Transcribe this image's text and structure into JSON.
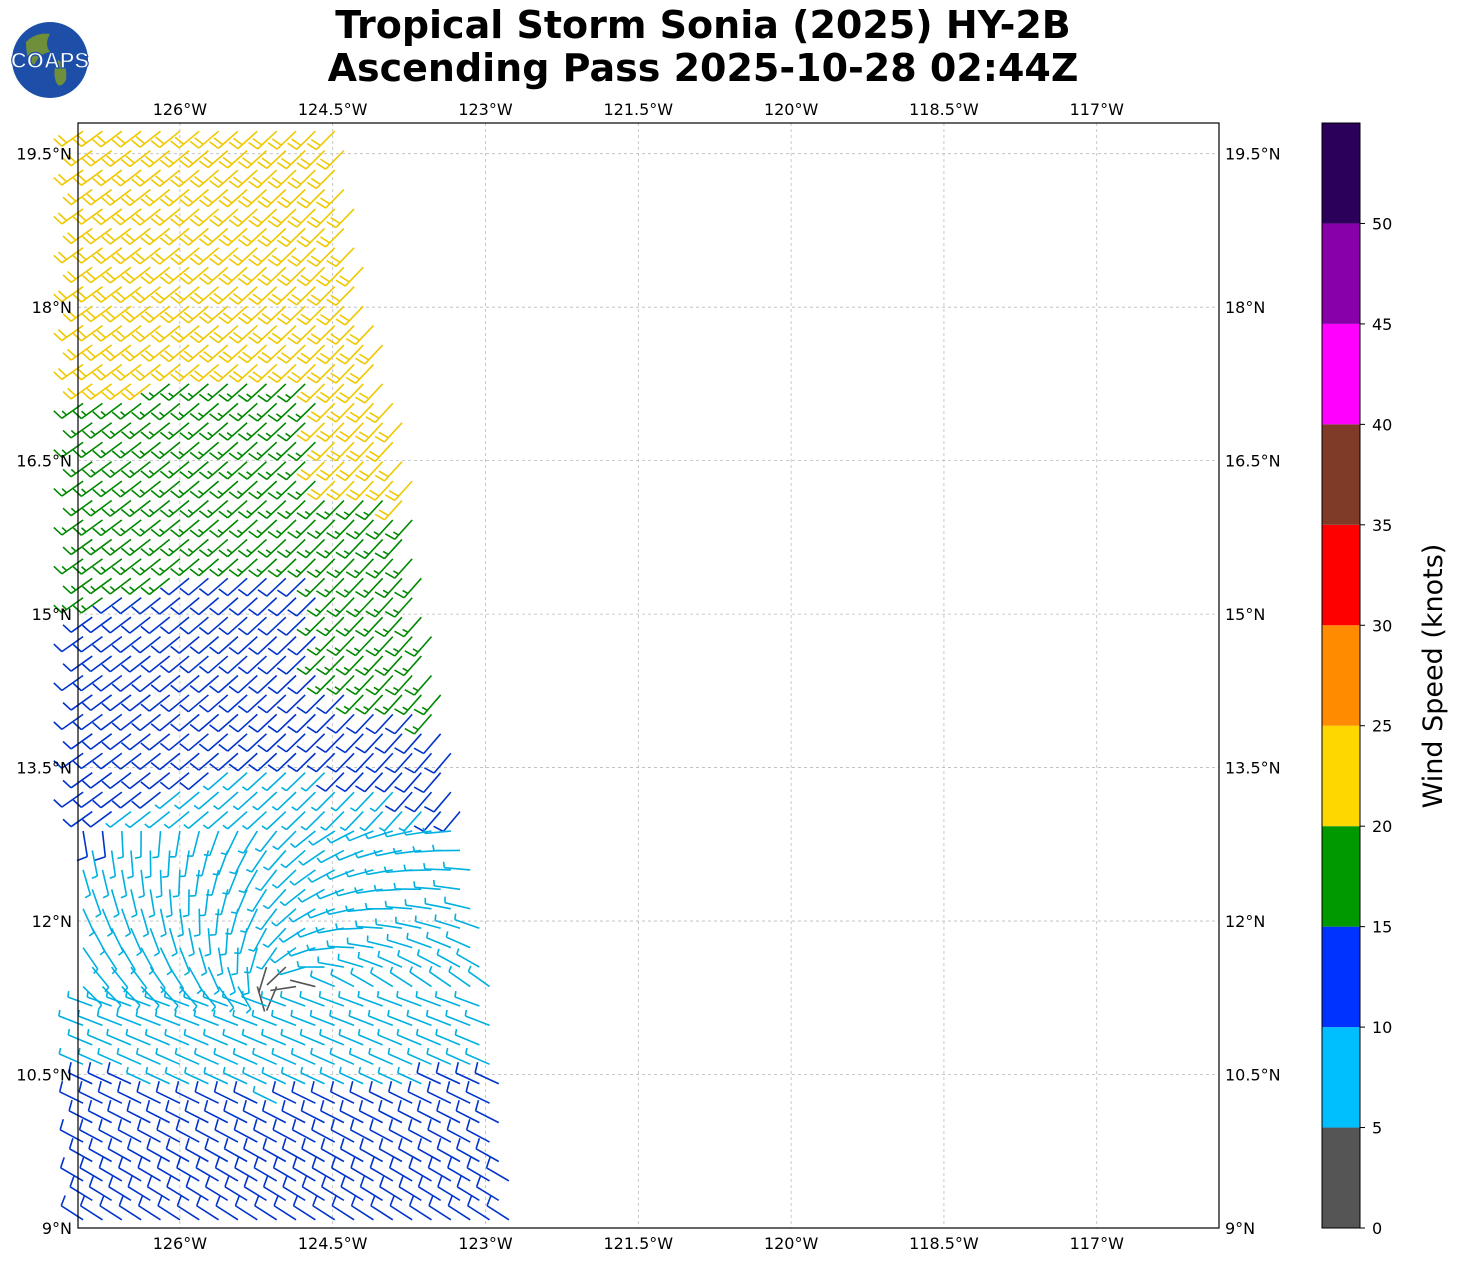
{
  "title": {
    "line1": "Tropical Storm Sonia (2025) HY-2B",
    "line2": "Ascending Pass 2025-10-28 02:44Z"
  },
  "logo": {
    "text": "COAPS",
    "icon": "earth-globe-icon"
  },
  "map": {
    "lon_range": [
      -127.0,
      -115.8
    ],
    "lat_range": [
      9.0,
      19.8
    ],
    "grid": true,
    "lon_ticks": [
      {
        "value": -126.0,
        "label": "126°W"
      },
      {
        "value": -124.5,
        "label": "124.5°W"
      },
      {
        "value": -123.0,
        "label": "123°W"
      },
      {
        "value": -121.5,
        "label": "121.5°W"
      },
      {
        "value": -120.0,
        "label": "120°W"
      },
      {
        "value": -118.5,
        "label": "118.5°W"
      },
      {
        "value": -117.0,
        "label": "117°W"
      }
    ],
    "lat_ticks": [
      {
        "value": 19.5,
        "label": "19.5°N"
      },
      {
        "value": 18.0,
        "label": "18°N"
      },
      {
        "value": 16.5,
        "label": "16.5°N"
      },
      {
        "value": 15.0,
        "label": "15°N"
      },
      {
        "value": 13.5,
        "label": "13.5°N"
      },
      {
        "value": 12.0,
        "label": "12°N"
      },
      {
        "value": 10.5,
        "label": "10.5°N"
      },
      {
        "value": 9.0,
        "label": "9°N"
      }
    ],
    "swath_east_edge": [
      [
        19.8,
        -124.4
      ],
      [
        18.5,
        -124.2
      ],
      [
        17.0,
        -123.8
      ],
      [
        15.5,
        -123.6
      ],
      [
        14.0,
        -123.4
      ],
      [
        12.5,
        -123.1
      ],
      [
        11.0,
        -122.9
      ],
      [
        9.0,
        -122.7
      ]
    ],
    "swath_west_edge": -127.0,
    "storm_center": {
      "lat": 11.2,
      "lon": -125.0
    }
  },
  "colorbar": {
    "label": "Wind Speed (knots)",
    "bins": [
      {
        "min": 0,
        "max": 5,
        "color": "#555555"
      },
      {
        "min": 5,
        "max": 10,
        "color": "#00bfff"
      },
      {
        "min": 10,
        "max": 15,
        "color": "#0033ff"
      },
      {
        "min": 15,
        "max": 20,
        "color": "#009900"
      },
      {
        "min": 20,
        "max": 25,
        "color": "#ffd700"
      },
      {
        "min": 25,
        "max": 30,
        "color": "#ff8c00"
      },
      {
        "min": 30,
        "max": 35,
        "color": "#ff0000"
      },
      {
        "min": 35,
        "max": 40,
        "color": "#7f3a28"
      },
      {
        "min": 40,
        "max": 45,
        "color": "#ff00ff"
      },
      {
        "min": 45,
        "max": 50,
        "color": "#8800aa"
      },
      {
        "min": 50,
        "max": 55,
        "color": "#2a005a"
      }
    ],
    "tick_labels": [
      "0",
      "5",
      "10",
      "15",
      "20",
      "25",
      "30",
      "35",
      "40",
      "45",
      "50"
    ]
  },
  "barb_colors": {
    "calm": "#555555",
    "light": "#00b0e0",
    "moderate": "#0033cc",
    "fresh": "#008800",
    "strong": "#f0c800"
  }
}
